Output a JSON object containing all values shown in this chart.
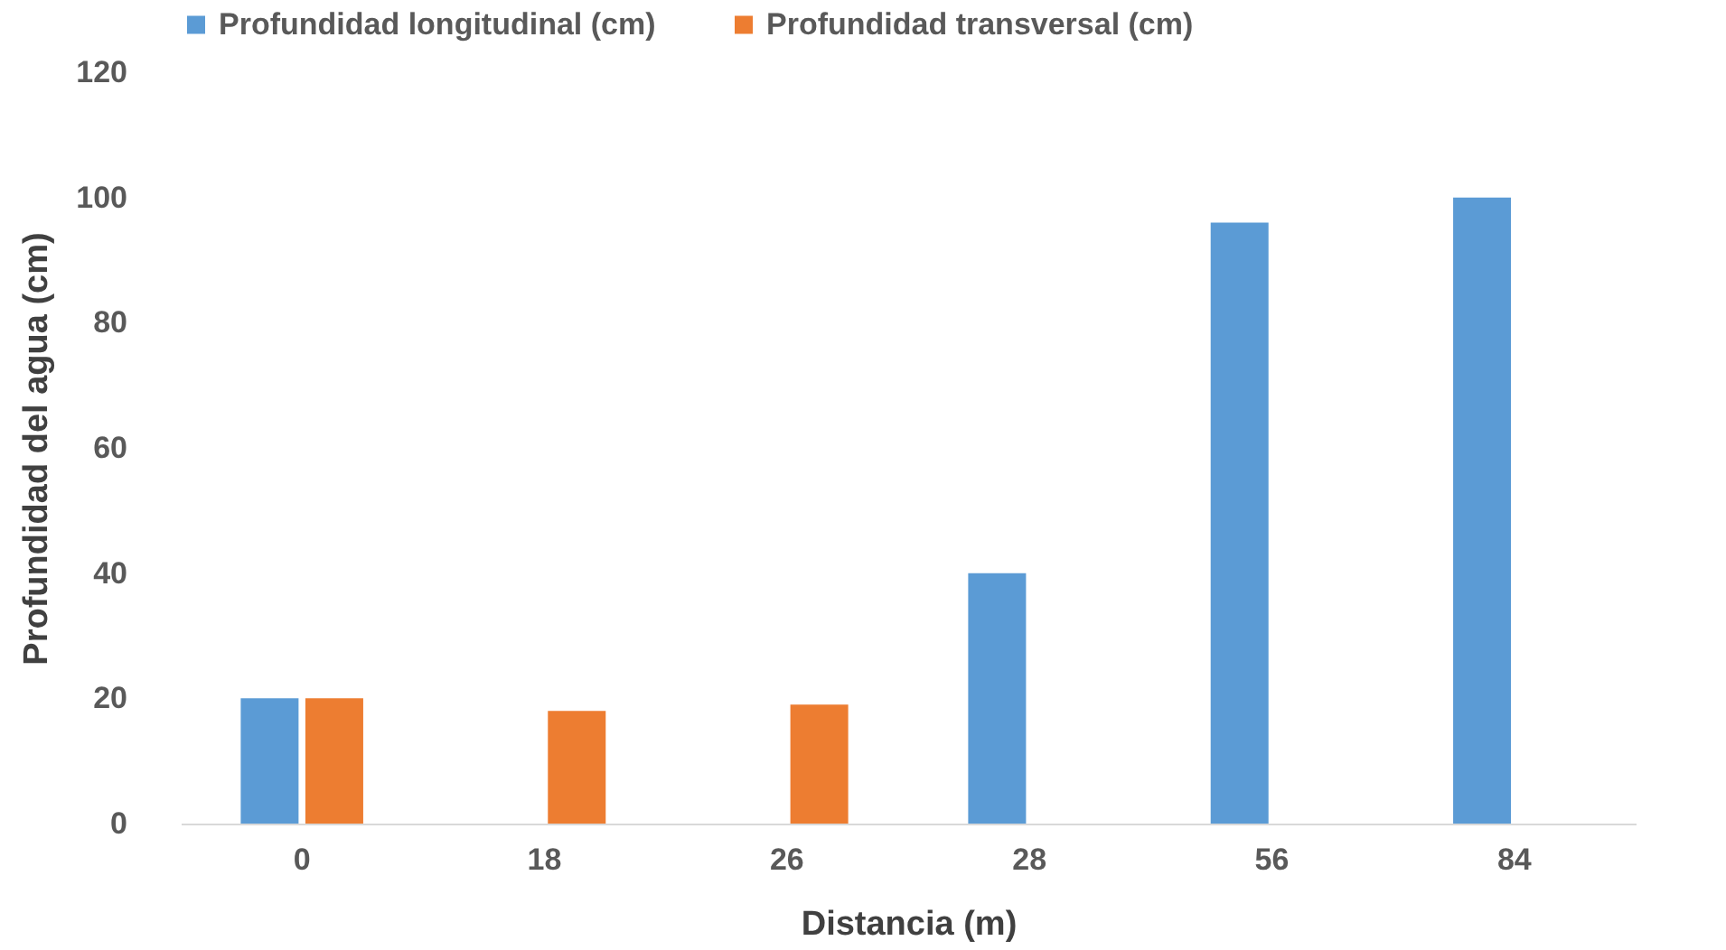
{
  "chart_data": {
    "type": "bar",
    "xlabel": "Distancia  (m)",
    "ylabel": "Profundidad  del  agua  (cm)",
    "categories": [
      "0",
      "18",
      "26",
      "28",
      "56",
      "84"
    ],
    "series": [
      {
        "name": "Profundidad longitudinal (cm)",
        "color": "#5b9bd5",
        "values": [
          20,
          null,
          null,
          40,
          96,
          100
        ]
      },
      {
        "name": "Profundidad transversal (cm)",
        "color": "#ed7d31",
        "values": [
          20,
          18,
          19,
          null,
          null,
          null
        ]
      }
    ],
    "ylim": [
      0,
      120
    ],
    "yticks": [
      0,
      20,
      40,
      60,
      80,
      100,
      120
    ],
    "grid": false,
    "legend": "top"
  }
}
